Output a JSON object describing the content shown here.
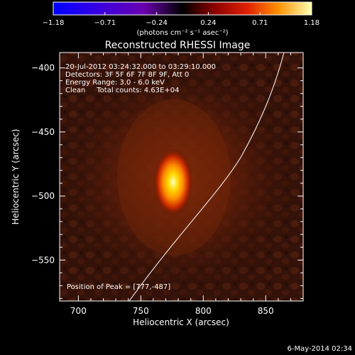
{
  "colorbar": {
    "ticks": [
      "−1.18",
      "−0.71",
      "−0.24",
      "0.24",
      "0.71",
      "1.18"
    ],
    "unit_label": "(photons cm⁻² s⁻¹ asec⁻²)"
  },
  "title": "Reconstructed RHESSI Image",
  "info_lines": [
    "20-Jul-2012 03:24:32.000 to 03:29:10.000",
    "Detectors: 3F 5F 6F 7F 8F 9F, Att 0",
    "Energy Range: 3.0 - 6.0 keV",
    "Clean     Total counts: 4.63E+04"
  ],
  "peak_label": "Position of Peak = [777,-487]",
  "x_axis": {
    "label": "Heliocentric X (arcsec)",
    "ticks": [
      "700",
      "750",
      "800",
      "850"
    ],
    "range": [
      685,
      880
    ]
  },
  "y_axis": {
    "label": "Heliocentric Y (arcsec)",
    "ticks": [
      "−400",
      "−450",
      "−500",
      "−550"
    ],
    "range": [
      -582,
      -388
    ]
  },
  "peak": {
    "x": 777,
    "y": -487
  },
  "timestamp": "6-May-2014 02:34",
  "colors": {
    "background": "#000000",
    "limb": "#ffffff"
  }
}
